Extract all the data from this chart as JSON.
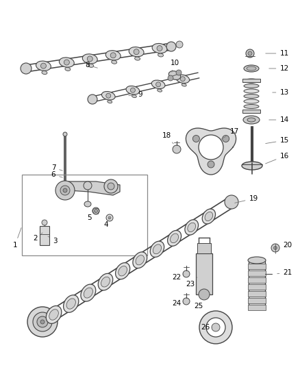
{
  "background_color": "#ffffff",
  "line_color": "#444444",
  "text_color": "#000000",
  "label_fontsize": 7.5,
  "fig_width": 4.38,
  "fig_height": 5.33,
  "dpi": 100
}
